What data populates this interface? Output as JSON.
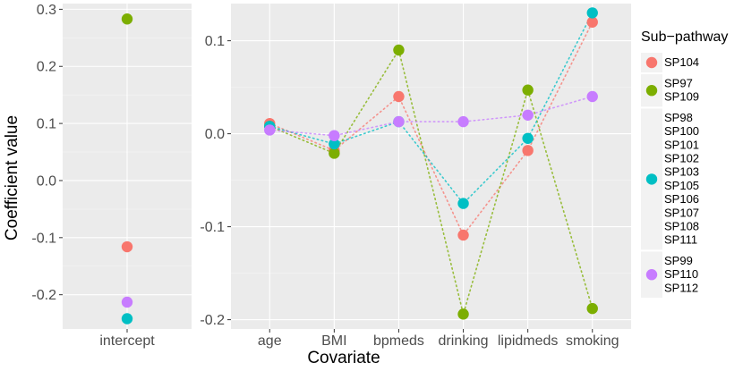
{
  "chart_data": [
    {
      "type": "scatter",
      "panel": "intercept",
      "xlabel": "",
      "ylabel": "Coefficient value",
      "ylim": [
        -0.26,
        0.31
      ],
      "yticks": [
        -0.2,
        -0.1,
        0.0,
        0.1,
        0.2,
        0.3
      ],
      "ytick_labels": [
        "-0.2",
        "-0.1",
        "0.0",
        "0.1",
        "0.2",
        "0.3"
      ],
      "categories": [
        "intercept"
      ],
      "series": [
        {
          "name": "SP104",
          "values": [
            -0.116
          ]
        },
        {
          "name": "SP97 SP109",
          "values": [
            0.283
          ]
        },
        {
          "name": "SP98 SP100 SP101 SP102 SP103 SP105 SP106 SP107 SP108 SP111",
          "values": [
            -0.242
          ]
        },
        {
          "name": "SP99 SP110 SP112",
          "values": [
            -0.213
          ]
        }
      ]
    },
    {
      "type": "line",
      "panel": "covariates",
      "xlabel": "Covariate",
      "ylabel": "",
      "ylim": [
        -0.21,
        0.14
      ],
      "yticks": [
        -0.2,
        -0.1,
        0.0,
        0.1
      ],
      "ytick_labels": [
        "-0.2",
        "-0.1",
        "0.0",
        "0.1"
      ],
      "categories": [
        "age",
        "BMI",
        "bpmeds",
        "drinking",
        "lipidmeds",
        "smoking"
      ],
      "series": [
        {
          "name": "SP104",
          "values": [
            0.011,
            -0.018,
            0.04,
            -0.109,
            -0.018,
            0.12
          ]
        },
        {
          "name": "SP97 SP109",
          "values": [
            0.008,
            -0.021,
            0.09,
            -0.194,
            0.047,
            -0.188
          ]
        },
        {
          "name": "SP98 SP100 SP101 SP102 SP103 SP105 SP106 SP107 SP108 SP111",
          "values": [
            0.008,
            -0.011,
            0.013,
            -0.075,
            -0.005,
            0.13
          ]
        },
        {
          "name": "SP99 SP110 SP112",
          "values": [
            0.004,
            -0.002,
            0.013,
            0.013,
            0.02,
            0.04
          ]
        }
      ]
    }
  ],
  "legend": {
    "title": "Sub−pathway",
    "entries": [
      {
        "lines": [
          "SP104"
        ],
        "color": "#F8766D"
      },
      {
        "lines": [
          "SP97",
          "SP109"
        ],
        "color": "#7CAE00"
      },
      {
        "lines": [
          "SP98",
          "SP100",
          "SP101",
          "SP102",
          "SP103",
          "SP105",
          "SP106",
          "SP107",
          "SP108",
          "SP111"
        ],
        "color": "#00BFC4"
      },
      {
        "lines": [
          "SP99",
          "SP110",
          "SP112"
        ],
        "color": "#C77CFF"
      }
    ]
  },
  "colors": {
    "panel_bg": "#EBEBEB",
    "grid_major": "#FFFFFF",
    "grid_minor": "#F5F5F5",
    "series": [
      "#F8766D",
      "#7CAE00",
      "#00BFC4",
      "#C77CFF"
    ]
  }
}
